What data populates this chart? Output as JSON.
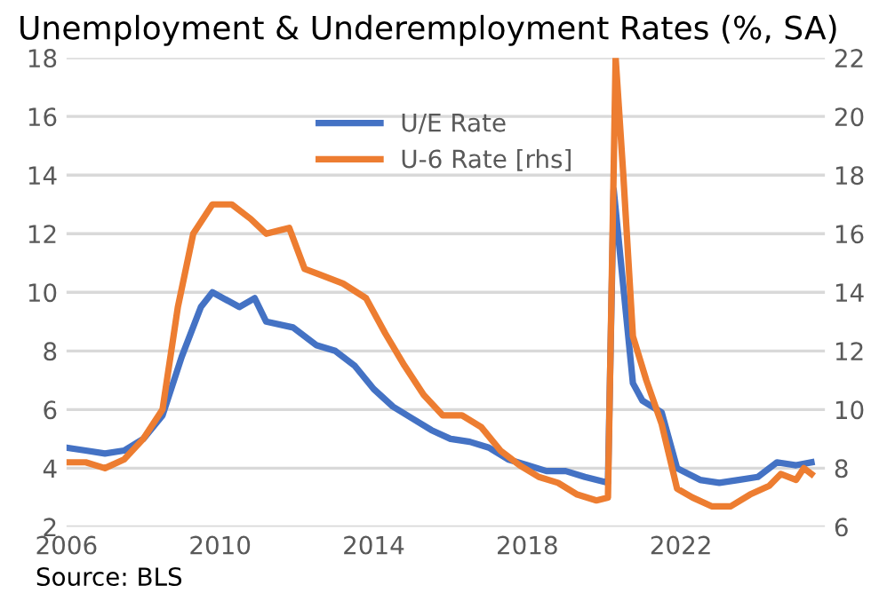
{
  "chart_data": {
    "type": "line",
    "title": "Unemployment & Underemployment Rates (%, SA)",
    "annotations": [
      "Source: BLS"
    ],
    "xlim": [
      2006,
      2025.75
    ],
    "xticks": [
      2006,
      2010,
      2014,
      2018,
      2022
    ],
    "ylim": [
      2,
      18
    ],
    "yticks": [
      2,
      4,
      6,
      8,
      10,
      12,
      14,
      16,
      18
    ],
    "y2lim": [
      6,
      22
    ],
    "y2ticks": [
      6,
      8,
      10,
      12,
      14,
      16,
      18,
      20,
      22
    ],
    "grid": "y",
    "legend": "top",
    "line_style": "solid",
    "marker": "none",
    "series": [
      {
        "name": "U/E Rate",
        "color": "#4472c4",
        "x": [
          2006.0,
          2006.5,
          2007.0,
          2007.5,
          2008.0,
          2008.5,
          2009.0,
          2009.5,
          2009.8,
          2010.5,
          2010.9,
          2011.2,
          2011.9,
          2012.5,
          2013.0,
          2013.5,
          2014.0,
          2014.5,
          2015.0,
          2015.5,
          2016.0,
          2016.5,
          2017.0,
          2017.5,
          2018.0,
          2018.5,
          2019.0,
          2019.5,
          2020.1,
          2020.25,
          2020.5,
          2020.75,
          2021.0,
          2021.5,
          2021.9,
          2022.5,
          2023.0,
          2023.5,
          2024.0,
          2024.5,
          2025.0,
          2025.4
        ],
        "values": [
          4.7,
          4.6,
          4.5,
          4.6,
          5.0,
          5.8,
          7.8,
          9.5,
          10.0,
          9.5,
          9.8,
          9.0,
          8.8,
          8.2,
          8.0,
          7.5,
          6.7,
          6.1,
          5.7,
          5.3,
          5.0,
          4.9,
          4.7,
          4.3,
          4.1,
          3.9,
          3.9,
          3.7,
          3.5,
          13.5,
          10.2,
          6.9,
          6.3,
          5.9,
          4.0,
          3.6,
          3.5,
          3.6,
          3.7,
          4.2,
          4.1,
          4.2
        ]
      },
      {
        "name": "U-6 Rate [rhs]",
        "color": "#ed7d31",
        "axis": "y2",
        "x": [
          2006.0,
          2006.5,
          2007.0,
          2007.5,
          2008.0,
          2008.5,
          2008.9,
          2009.3,
          2009.8,
          2010.3,
          2010.8,
          2011.2,
          2011.8,
          2012.2,
          2012.6,
          2013.2,
          2013.8,
          2014.3,
          2014.8,
          2015.3,
          2015.8,
          2016.3,
          2016.8,
          2017.3,
          2017.8,
          2018.3,
          2018.8,
          2019.3,
          2019.8,
          2020.1,
          2020.3,
          2020.5,
          2020.75,
          2021.1,
          2021.5,
          2021.9,
          2022.3,
          2022.8,
          2023.3,
          2023.8,
          2024.3,
          2024.6,
          2025.0,
          2025.2,
          2025.4
        ],
        "values": [
          8.2,
          8.2,
          8.0,
          8.3,
          9.0,
          10.0,
          13.5,
          16.0,
          17.0,
          17.0,
          16.5,
          16.0,
          16.2,
          14.8,
          14.6,
          14.3,
          13.8,
          12.6,
          11.5,
          10.5,
          9.8,
          9.8,
          9.4,
          8.6,
          8.1,
          7.7,
          7.5,
          7.1,
          6.9,
          7.0,
          22,
          18,
          12.5,
          11.0,
          9.5,
          7.3,
          7.0,
          6.7,
          6.7,
          7.1,
          7.4,
          7.8,
          7.6,
          8.0,
          7.8
        ]
      }
    ]
  }
}
